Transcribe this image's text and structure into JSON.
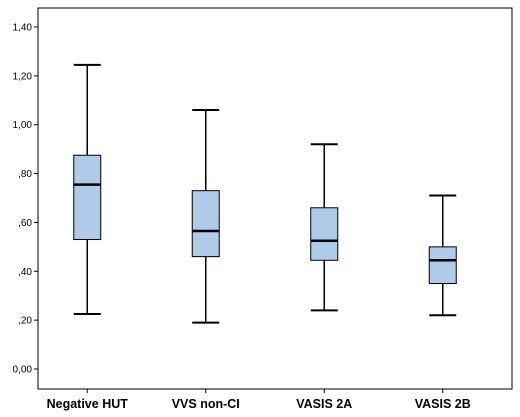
{
  "chart_data": {
    "type": "boxplot",
    "categories": [
      "Negative HUT",
      "VVS non-CI",
      "VASIS 2A",
      "VASIS 2B"
    ],
    "series": [
      {
        "values": [
          {
            "min": 0.225,
            "q1": 0.53,
            "median": 0.755,
            "q3": 0.875,
            "max": 1.245
          },
          {
            "min": 0.19,
            "q1": 0.46,
            "median": 0.565,
            "q3": 0.73,
            "max": 1.06
          },
          {
            "min": 0.24,
            "q1": 0.445,
            "median": 0.525,
            "q3": 0.66,
            "max": 0.92
          },
          {
            "min": 0.22,
            "q1": 0.35,
            "median": 0.445,
            "q3": 0.5,
            "max": 0.71
          }
        ]
      }
    ],
    "yticks": [
      "0,00",
      ",20",
      ",40",
      ",60",
      ",80",
      "1,00",
      "1,20",
      "1,40"
    ],
    "ylim": [
      0,
      1.4
    ],
    "grid": false,
    "box_color": "#aecce9",
    "line_color": "#000000",
    "background": "#ffffff"
  }
}
